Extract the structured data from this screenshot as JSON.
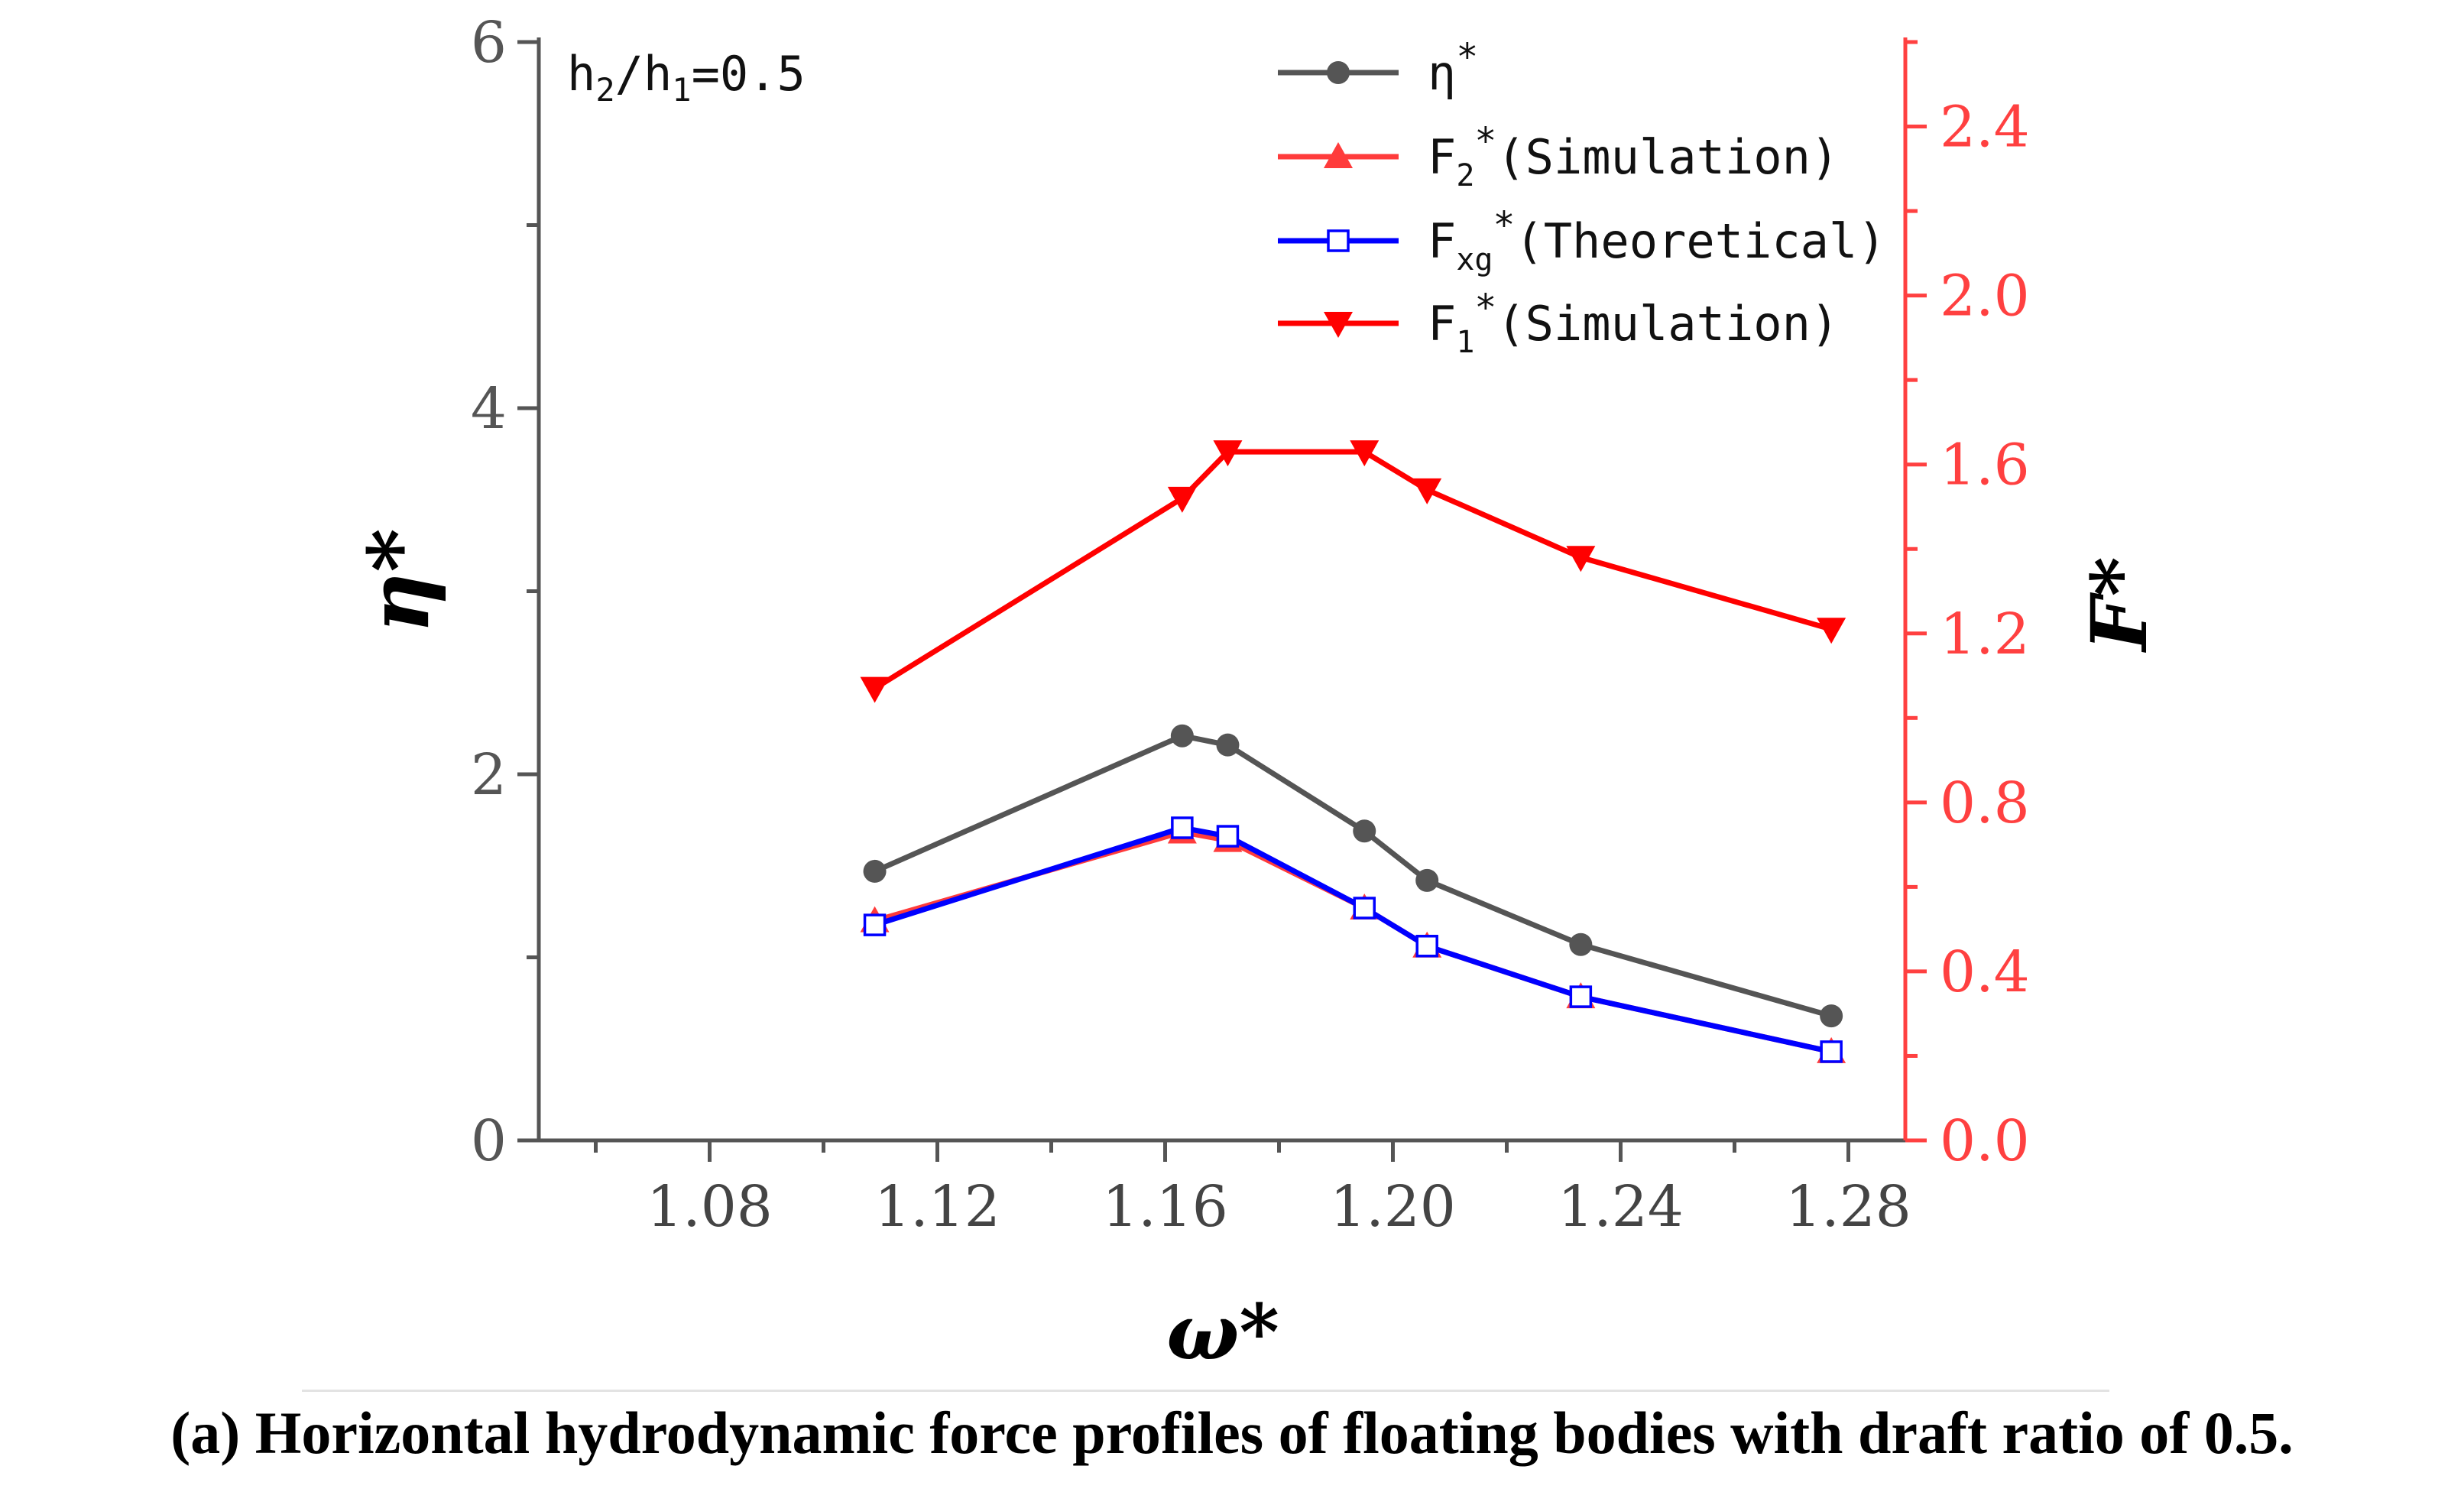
{
  "chart_data": {
    "type": "line",
    "annotation": "h2/h1=0.5",
    "xlabel": "ω*",
    "ylabel_left": "η*",
    "ylabel_right": "F*",
    "xlim": [
      1.05,
      1.29
    ],
    "x_ticks": [
      "1.08",
      "1.12",
      "1.16",
      "1.20",
      "1.24",
      "1.28"
    ],
    "ylim_left": [
      0,
      6
    ],
    "y_ticks_left": [
      "0",
      "2",
      "4",
      "6"
    ],
    "ylim_right": [
      0,
      2.6
    ],
    "y_ticks_right": [
      "0.0",
      "0.4",
      "0.8",
      "1.2",
      "1.6",
      "2.0",
      "2.4"
    ],
    "x": [
      1.109,
      1.163,
      1.171,
      1.195,
      1.206,
      1.233,
      1.277
    ],
    "series": [
      {
        "name": "η*",
        "legend_main": "η",
        "legend_sub": "",
        "legend_sup": "*",
        "legend_suffix": "",
        "axis": "left",
        "color": "#555555",
        "marker": "circle",
        "values": [
          1.47,
          2.21,
          2.16,
          1.69,
          1.42,
          1.07,
          0.68
        ]
      },
      {
        "name": "F2*(Simulation)",
        "legend_main": "F",
        "legend_sub": "2",
        "legend_sup": "*",
        "legend_suffix": "(Simulation)",
        "axis": "right",
        "color": "#ff3b3b",
        "marker": "triangle-up",
        "values": [
          0.52,
          0.73,
          0.71,
          0.55,
          0.46,
          0.34,
          0.21
        ]
      },
      {
        "name": "Fxg*(Theoretical)",
        "legend_main": "F",
        "legend_sub": "xg",
        "legend_sup": "*",
        "legend_suffix": "(Theoretical)",
        "axis": "right",
        "color": "#0000ff",
        "marker": "square-open",
        "values": [
          0.51,
          0.74,
          0.72,
          0.55,
          0.46,
          0.34,
          0.21
        ]
      },
      {
        "name": "F1*(Simulation)",
        "legend_main": "F",
        "legend_sub": "1",
        "legend_sup": "*",
        "legend_suffix": "(Simulation)",
        "axis": "right",
        "color": "#ff0000",
        "marker": "triangle-down",
        "values": [
          1.07,
          1.52,
          1.63,
          1.63,
          1.54,
          1.38,
          1.21
        ]
      }
    ],
    "left_axis_color": "#555555",
    "right_axis_color": "#ff4040"
  },
  "caption": "(a) Horizontal hydrodynamic force profiles of floating bodies with draft ratio of 0.5."
}
